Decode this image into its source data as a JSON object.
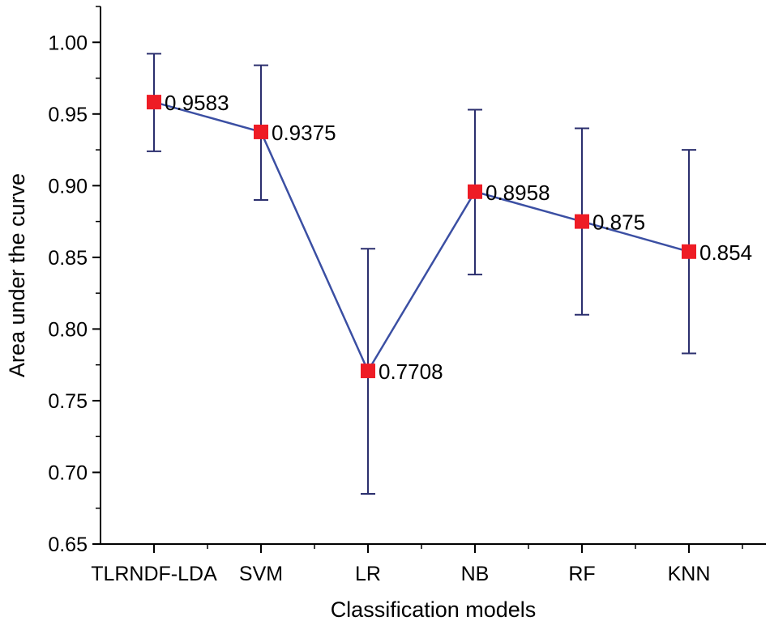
{
  "chart_data": {
    "type": "line",
    "xlabel": "Classification models",
    "ylabel": "Area under the curve",
    "categories": [
      "TLRNDF-LDA",
      "SVM",
      "LR",
      "NB",
      "RF",
      "KNN"
    ],
    "values": [
      0.9583,
      0.9375,
      0.7708,
      0.8958,
      0.875,
      0.854
    ],
    "value_labels": [
      "0.9583",
      "0.9375",
      "0.7708",
      "0.8958",
      "0.875",
      "0.854"
    ],
    "error_upper": [
      0.992,
      0.984,
      0.856,
      0.953,
      0.94,
      0.925
    ],
    "error_lower": [
      0.924,
      0.89,
      0.685,
      0.838,
      0.81,
      0.783
    ],
    "ylim": [
      0.65,
      1.025
    ],
    "yticks": [
      "0.65",
      "0.70",
      "0.75",
      "0.80",
      "0.85",
      "0.90",
      "0.95",
      "1.00"
    ],
    "grid": false,
    "line_color": "#3b4fa3",
    "marker_color": "#ee1c25",
    "errorbar_color": "#2b2f6e"
  }
}
